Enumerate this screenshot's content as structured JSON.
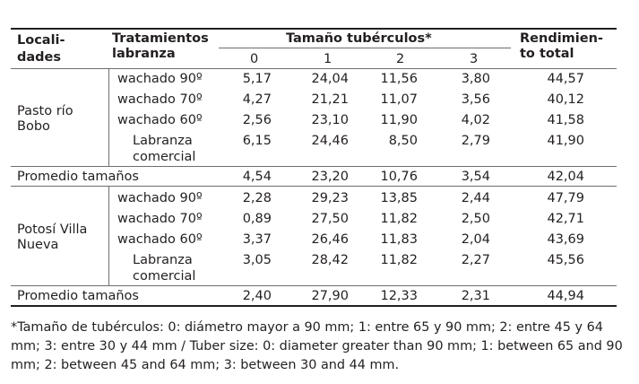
{
  "header": {
    "col_localidades": [
      "Locali-",
      "dades"
    ],
    "col_tratamientos": [
      "Tratamientos",
      "labranza"
    ],
    "col_tamano": "Tamaño tubérculos*",
    "sizes": [
      "0",
      "1",
      "2",
      "3"
    ],
    "col_rendimiento": [
      "Rendimien-",
      "to total"
    ]
  },
  "groups": [
    {
      "location": [
        "Pasto río",
        "Bobo"
      ],
      "rows": [
        {
          "treatment": [
            "wachado 90º"
          ],
          "values": [
            "5,17",
            "24,04",
            "11,56",
            "3,80",
            "44,57"
          ]
        },
        {
          "treatment": [
            "wachado 70º"
          ],
          "values": [
            "4,27",
            "21,21",
            "11,07",
            "3,56",
            "40,12"
          ]
        },
        {
          "treatment": [
            "wachado 60º"
          ],
          "values": [
            "2,56",
            "23,10",
            "11,90",
            "4,02",
            "41,58"
          ]
        },
        {
          "treatment": [
            "Labranza",
            "comercial"
          ],
          "values": [
            "6,15",
            "24,46",
            "8,50",
            "2,79",
            "41,90"
          ]
        }
      ],
      "average": {
        "label": "Promedio tamaños",
        "values": [
          "4,54",
          "23,20",
          "10,76",
          "3,54",
          "42,04"
        ]
      }
    },
    {
      "location": [
        "Potosí Villa",
        "Nueva"
      ],
      "rows": [
        {
          "treatment": [
            "wachado 90º"
          ],
          "values": [
            "2,28",
            "29,23",
            "13,85",
            "2,44",
            "47,79"
          ]
        },
        {
          "treatment": [
            "wachado 70º"
          ],
          "values": [
            "0,89",
            "27,50",
            "11,82",
            "2,50",
            "42,71"
          ]
        },
        {
          "treatment": [
            "wachado 60º"
          ],
          "values": [
            "3,37",
            "26,46",
            "11,83",
            "2,04",
            "43,69"
          ]
        },
        {
          "treatment": [
            "Labranza",
            "comercial"
          ],
          "values": [
            "3,05",
            "28,42",
            "11,82",
            "2,27",
            "45,56"
          ]
        }
      ],
      "average": {
        "label": "Promedio tamaños",
        "values": [
          "2,40",
          "27,90",
          "12,33",
          "2,31",
          "44,94"
        ]
      }
    }
  ],
  "footnote": "*Tamaño de tubérculos: 0: diámetro mayor a 90 mm; 1: entre 65 y 90 mm; 2: entre 45 y 64 mm; 3: entre 30 y 44 mm / Tuber size: 0: diameter greater than 90 mm; 1: between 65 and 90 mm; 2: between 45 and 64 mm; 3: between 30 and 44 mm."
}
